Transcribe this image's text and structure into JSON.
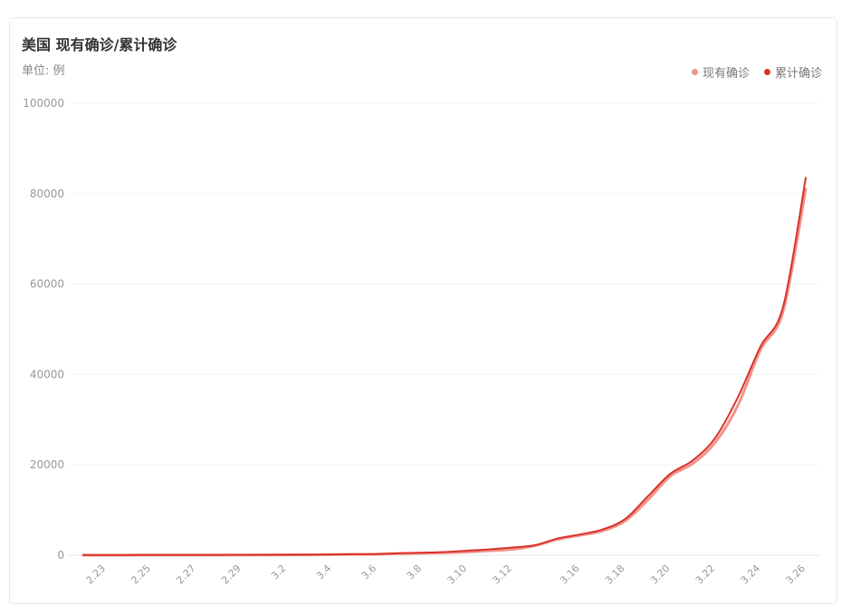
{
  "header": {
    "title": "美国 现有确诊/累计确诊",
    "unit": "单位: 例"
  },
  "legend": [
    {
      "label": "现有确诊",
      "color": "#f0948a"
    },
    {
      "label": "累计确诊",
      "color": "#d9332b"
    }
  ],
  "chart_data": {
    "type": "line",
    "title": "美国 现有确诊/累计确诊",
    "subtitle": "单位: 例",
    "xlabel": "",
    "ylabel": "",
    "ylim": [
      0,
      100000
    ],
    "yticks": [
      0,
      20000,
      40000,
      60000,
      80000,
      100000
    ],
    "grid": true,
    "legend_position": "top-right",
    "x": [
      "2.22",
      "2.23",
      "2.24",
      "2.25",
      "2.26",
      "2.27",
      "2.28",
      "2.29",
      "3.1",
      "3.2",
      "3.3",
      "3.4",
      "3.5",
      "3.6",
      "3.7",
      "3.8",
      "3.9",
      "3.10",
      "3.11",
      "3.12",
      "3.13",
      "3.15",
      "3.16",
      "3.17",
      "3.18",
      "3.19",
      "3.20",
      "3.21",
      "3.22",
      "3.23",
      "3.24",
      "3.25",
      "3.26"
    ],
    "xticks": [
      "2.23",
      "2.25",
      "2.27",
      "2.29",
      "3.2",
      "3.4",
      "3.6",
      "3.8",
      "3.10",
      "3.12",
      "3.16",
      "3.18",
      "3.20",
      "3.22",
      "3.24",
      "3.26"
    ],
    "series": [
      {
        "name": "现有确诊",
        "color": "#f0948a",
        "values": [
          30,
          30,
          30,
          50,
          50,
          55,
          55,
          60,
          65,
          90,
          110,
          140,
          190,
          230,
          350,
          440,
          560,
          700,
          1000,
          1300,
          2100,
          3500,
          4400,
          5400,
          7600,
          12200,
          17500,
          20300,
          25000,
          33200,
          45500,
          54000,
          81000
        ]
      },
      {
        "name": "累计确诊",
        "color": "#d9332b",
        "values": [
          35,
          35,
          35,
          53,
          53,
          59,
          60,
          68,
          75,
          100,
          125,
          160,
          220,
          260,
          440,
          540,
          700,
          1000,
          1300,
          1700,
          2200,
          3700,
          4600,
          5700,
          8000,
          13000,
          18000,
          21000,
          26000,
          35000,
          46200,
          55000,
          83500
        ]
      }
    ]
  }
}
